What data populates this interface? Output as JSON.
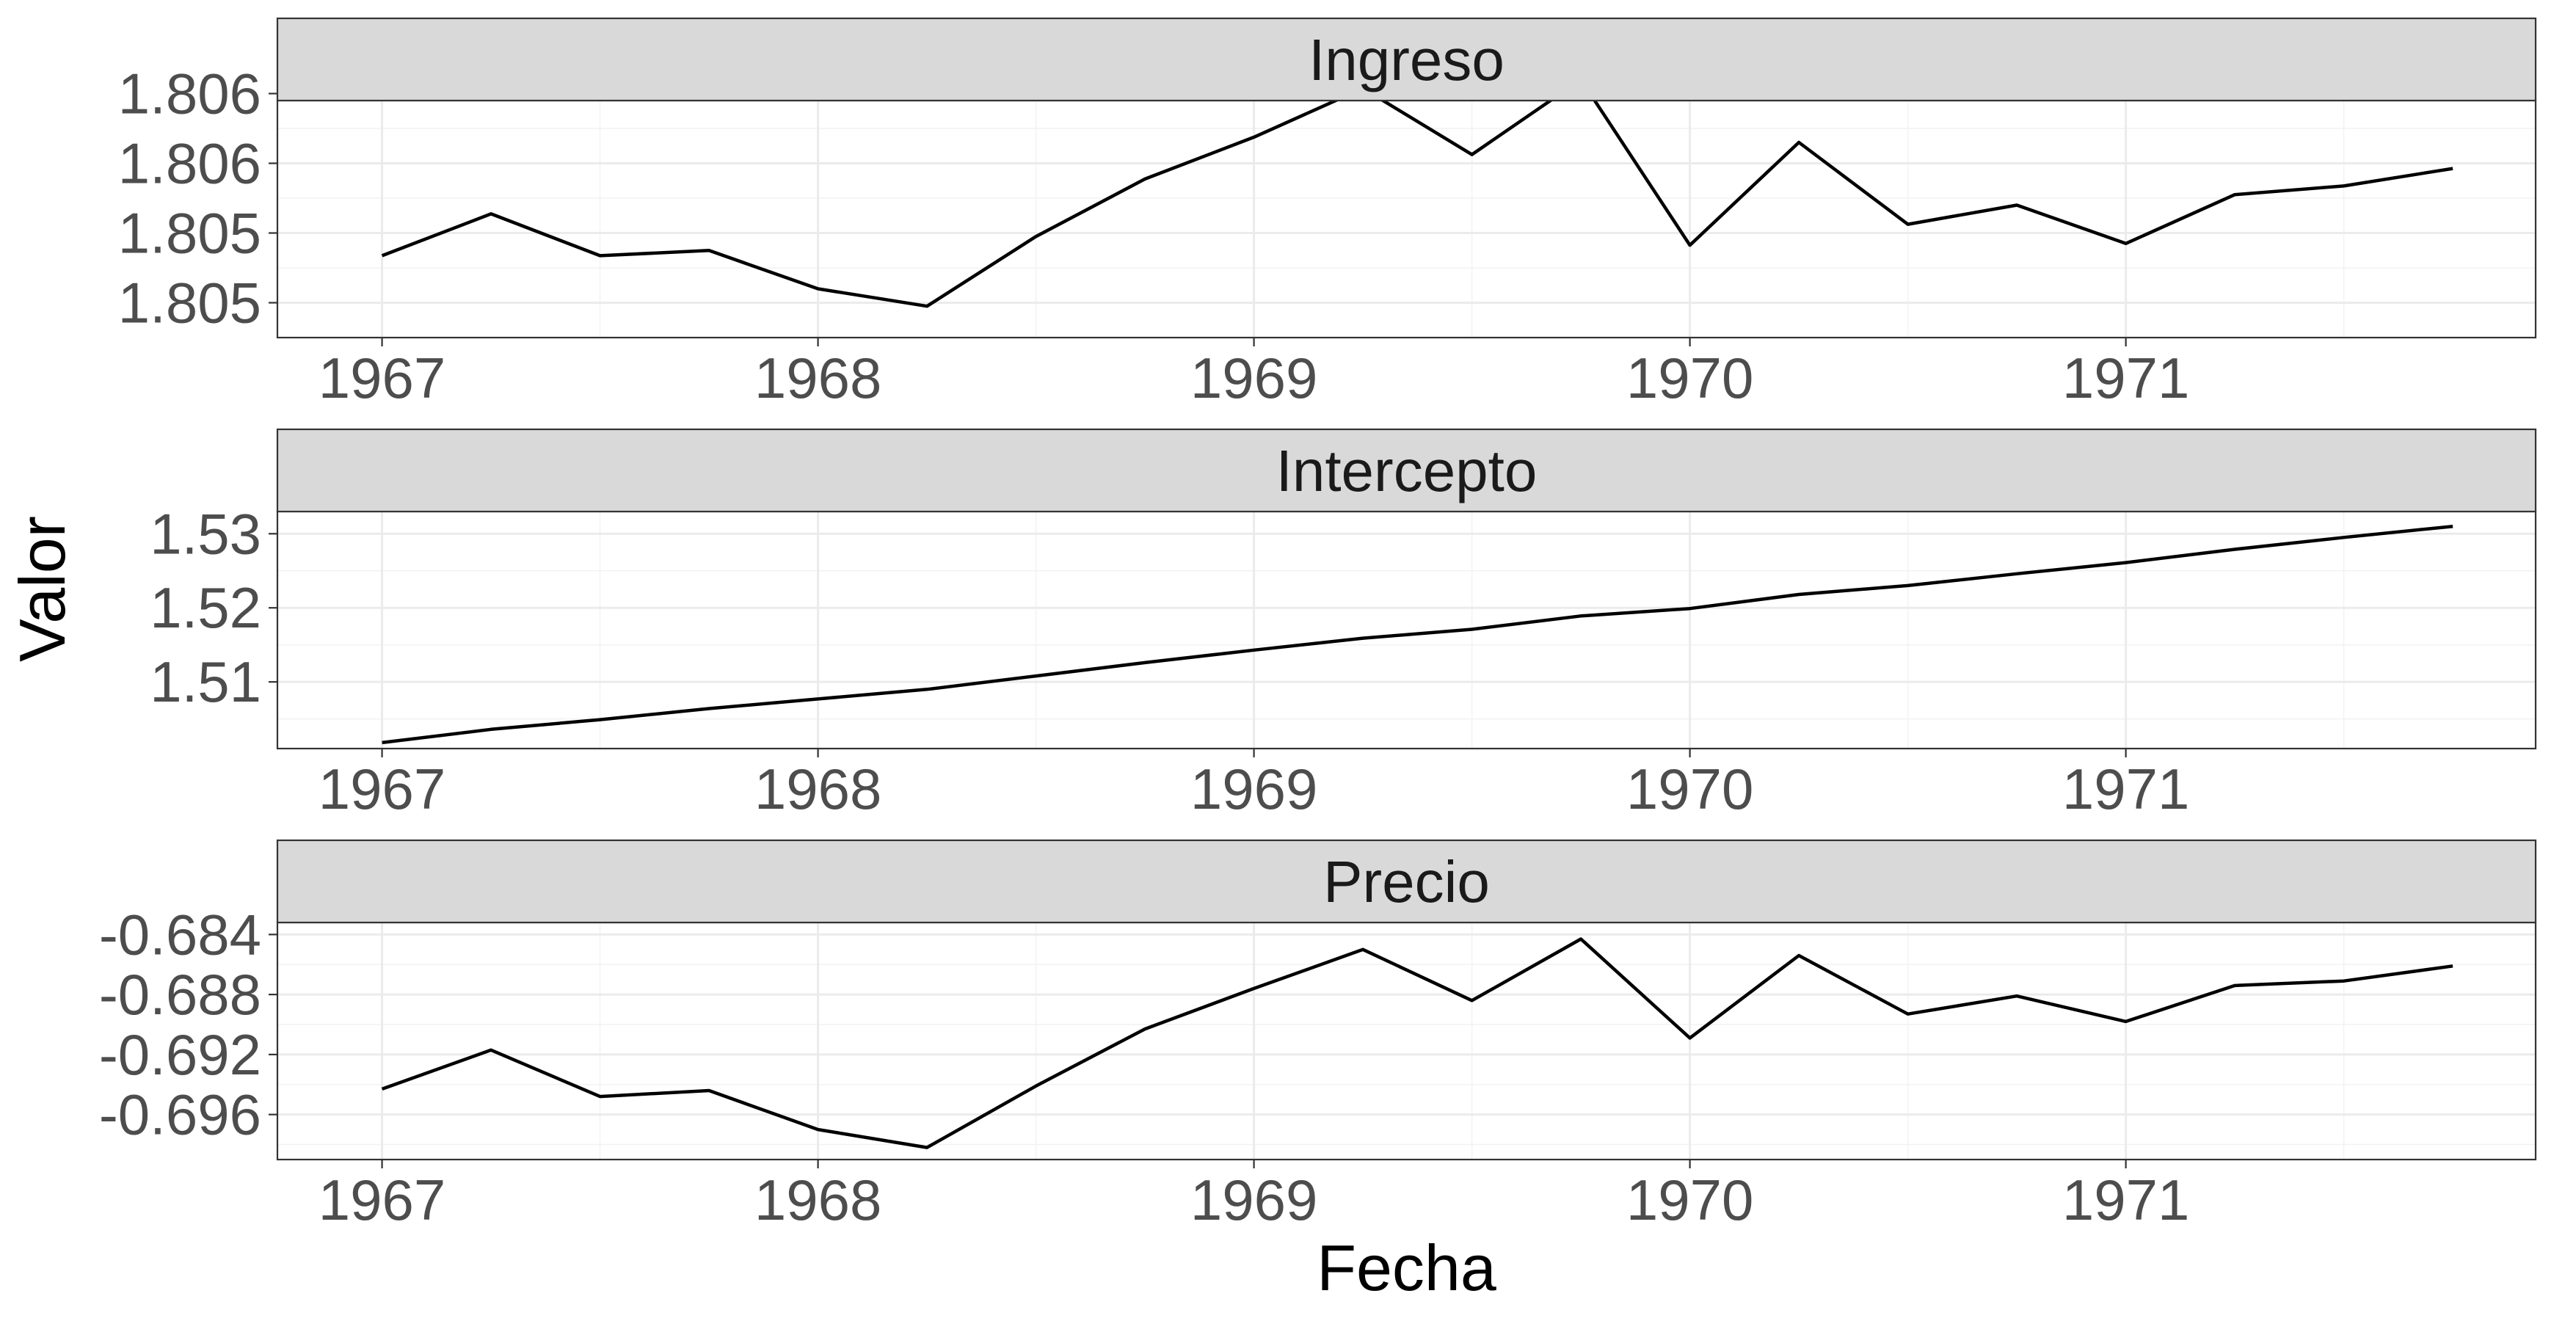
{
  "chart_data": {
    "type": "line",
    "layout": "facets",
    "xlabel": "Fecha",
    "ylabel": "Valor",
    "x_ticks": [
      "1967",
      "1968",
      "1969",
      "1970",
      "1971"
    ],
    "x": [
      1967.0,
      1967.25,
      1967.5,
      1967.75,
      1968.0,
      1968.25,
      1968.5,
      1968.75,
      1969.0,
      1969.25,
      1969.5,
      1969.75,
      1970.0,
      1970.25,
      1970.5,
      1970.75,
      1971.0,
      1971.25,
      1971.5,
      1971.75
    ],
    "xlim": [
      1966.76,
      1971.94
    ],
    "grid": true,
    "facets": [
      {
        "title": "Ingreso",
        "ylim": [
          1.8047,
          1.80606
        ],
        "y_ticks": [
          1.8049,
          1.8053,
          1.8057,
          1.8061
        ],
        "y_tick_labels": [
          "1.805",
          "1.805",
          "1.806",
          "1.806"
        ],
        "values": [
          1.80517,
          1.80541,
          1.80517,
          1.8052,
          1.80498,
          1.80488,
          1.80528,
          1.80561,
          1.80585,
          1.80613,
          1.80575,
          1.80618,
          1.80523,
          1.80582,
          1.80535,
          1.80546,
          1.80524,
          1.80552,
          1.80557,
          1.80567
        ]
      },
      {
        "title": "Intercepto",
        "ylim": [
          1.501,
          1.533
        ],
        "y_ticks": [
          1.51,
          1.52,
          1.53
        ],
        "y_tick_labels": [
          "1.51",
          "1.52",
          "1.53"
        ],
        "values": [
          1.5018,
          1.5036,
          1.5049,
          1.5064,
          1.5077,
          1.509,
          1.5108,
          1.5126,
          1.5143,
          1.5159,
          1.5171,
          1.5189,
          1.5199,
          1.5218,
          1.523,
          1.5246,
          1.5261,
          1.5279,
          1.5295,
          1.531
        ]
      },
      {
        "title": "Precio",
        "ylim": [
          -0.699,
          -0.6832
        ],
        "y_ticks": [
          -0.696,
          -0.692,
          -0.688,
          -0.684
        ],
        "y_tick_labels": [
          "-0.696",
          "-0.692",
          "-0.688",
          "-0.684"
        ],
        "values": [
          -0.6943,
          -0.6917,
          -0.6948,
          -0.6944,
          -0.697,
          -0.6982,
          -0.6941,
          -0.6903,
          -0.6876,
          -0.685,
          -0.6884,
          -0.6843,
          -0.6909,
          -0.6854,
          -0.6893,
          -0.6881,
          -0.6898,
          -0.6874,
          -0.6871,
          -0.6861
        ]
      }
    ]
  }
}
